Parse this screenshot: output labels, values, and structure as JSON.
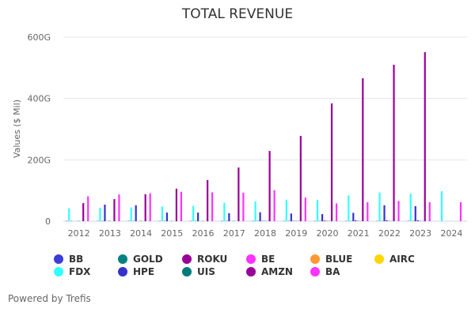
{
  "chart_data": {
    "type": "bar",
    "title": "TOTAL REVENUE",
    "ylabel": "Values ($ Mil)",
    "xlabel": "",
    "ylim": [
      0,
      600
    ],
    "yticks": [
      0,
      200,
      400,
      600
    ],
    "ytick_labels": [
      "0",
      "200G",
      "400G",
      "600G"
    ],
    "grid": true,
    "legend_position": "bottom",
    "categories": [
      "2012",
      "2013",
      "2014",
      "2015",
      "2016",
      "2017",
      "2018",
      "2019",
      "2020",
      "2021",
      "2022",
      "2023",
      "2024"
    ],
    "series": [
      {
        "name": "BB",
        "color": "#3c3cd6",
        "values": [
          1,
          1,
          1,
          1,
          1,
          1,
          1,
          1,
          1,
          1,
          1,
          1,
          0
        ]
      },
      {
        "name": "FDX",
        "color": "#33ffff",
        "values": [
          42,
          44,
          45,
          48,
          50,
          60,
          65,
          70,
          69,
          84,
          93,
          90,
          98
        ]
      },
      {
        "name": "GOLD",
        "color": "#008080",
        "values": [
          1,
          1,
          1,
          1,
          1,
          1,
          1,
          1,
          1,
          1,
          1,
          1,
          0
        ]
      },
      {
        "name": "HPE",
        "color": "#3333cc",
        "values": [
          0,
          54,
          52,
          28,
          28,
          26,
          29,
          25,
          23,
          27,
          52,
          49,
          0
        ]
      },
      {
        "name": "ROKU",
        "color": "#990099",
        "values": [
          0,
          0,
          0,
          0,
          0,
          0,
          1,
          1,
          2,
          3,
          3,
          3,
          0
        ]
      },
      {
        "name": "UIS",
        "color": "#007a7a",
        "values": [
          1,
          1,
          1,
          1,
          1,
          1,
          1,
          1,
          1,
          1,
          1,
          1,
          0
        ]
      },
      {
        "name": "BE",
        "color": "#ff33ff",
        "values": [
          0,
          0,
          0,
          0,
          0,
          0,
          1,
          1,
          1,
          1,
          1,
          1,
          0
        ]
      },
      {
        "name": "AMZN",
        "color": "#990099",
        "values": [
          59,
          72,
          88,
          106,
          134,
          175,
          229,
          278,
          384,
          466,
          510,
          551,
          0
        ]
      },
      {
        "name": "BLUE",
        "color": "#ff9933",
        "values": [
          0,
          0,
          0,
          0,
          0,
          0,
          0,
          0,
          0,
          0,
          0,
          0,
          0
        ]
      },
      {
        "name": "BA",
        "color": "#ff33ff",
        "values": [
          81,
          87,
          91,
          96,
          94,
          93,
          101,
          77,
          58,
          62,
          66,
          62,
          62
        ]
      },
      {
        "name": "AIRC",
        "color": "#ffd700",
        "values": [
          0,
          0,
          0,
          0,
          0,
          0,
          0,
          0,
          0,
          0,
          0,
          0,
          0
        ]
      }
    ],
    "legend_order": [
      "BB",
      "GOLD",
      "ROKU",
      "BE",
      "BLUE",
      "AIRC",
      "FDX",
      "HPE",
      "UIS",
      "AMZN",
      "BA"
    ]
  },
  "footer": "Powered by Trefis"
}
